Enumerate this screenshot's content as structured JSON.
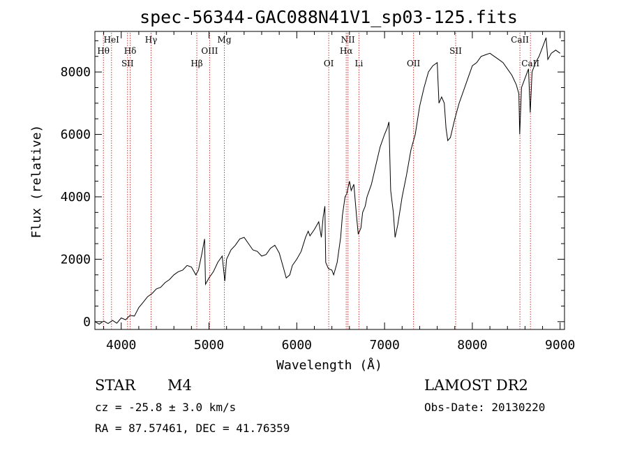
{
  "chart_data": {
    "type": "line",
    "title": "spec-56344-GAC088N41V1_sp03-125.fits",
    "xlabel": "Wavelength (Å)",
    "ylabel": "Flux (relative)",
    "xlim": [
      3700,
      9050
    ],
    "ylim": [
      -250,
      9300
    ],
    "x_ticks": [
      4000,
      5000,
      6000,
      7000,
      8000,
      9000
    ],
    "y_ticks": [
      0,
      2000,
      4000,
      6000,
      8000
    ],
    "grid": false,
    "series": [
      {
        "points": [
          [
            3700,
            0
          ],
          [
            3750,
            -80
          ],
          [
            3800,
            20
          ],
          [
            3850,
            -60
          ],
          [
            3900,
            40
          ],
          [
            3950,
            -50
          ],
          [
            4000,
            120
          ],
          [
            4050,
            60
          ],
          [
            4100,
            200
          ],
          [
            4150,
            180
          ],
          [
            4200,
            450
          ],
          [
            4250,
            620
          ],
          [
            4300,
            800
          ],
          [
            4350,
            900
          ],
          [
            4400,
            1050
          ],
          [
            4450,
            1100
          ],
          [
            4500,
            1250
          ],
          [
            4550,
            1350
          ],
          [
            4600,
            1500
          ],
          [
            4650,
            1600
          ],
          [
            4700,
            1650
          ],
          [
            4750,
            1800
          ],
          [
            4800,
            1750
          ],
          [
            4850,
            1500
          ],
          [
            4880,
            1650
          ],
          [
            4920,
            2200
          ],
          [
            4950,
            2650
          ],
          [
            4960,
            1200
          ],
          [
            5000,
            1400
          ],
          [
            5050,
            1600
          ],
          [
            5100,
            1900
          ],
          [
            5150,
            2100
          ],
          [
            5180,
            1300
          ],
          [
            5200,
            2000
          ],
          [
            5250,
            2300
          ],
          [
            5300,
            2450
          ],
          [
            5350,
            2650
          ],
          [
            5400,
            2700
          ],
          [
            5450,
            2500
          ],
          [
            5500,
            2300
          ],
          [
            5550,
            2250
          ],
          [
            5600,
            2100
          ],
          [
            5650,
            2150
          ],
          [
            5700,
            2350
          ],
          [
            5750,
            2450
          ],
          [
            5800,
            2200
          ],
          [
            5850,
            1700
          ],
          [
            5880,
            1400
          ],
          [
            5920,
            1500
          ],
          [
            5950,
            1800
          ],
          [
            6000,
            2000
          ],
          [
            6050,
            2250
          ],
          [
            6100,
            2700
          ],
          [
            6130,
            2900
          ],
          [
            6150,
            2750
          ],
          [
            6200,
            2950
          ],
          [
            6250,
            3200
          ],
          [
            6280,
            2700
          ],
          [
            6300,
            3350
          ],
          [
            6320,
            3700
          ],
          [
            6330,
            1900
          ],
          [
            6360,
            1700
          ],
          [
            6400,
            1650
          ],
          [
            6420,
            1500
          ],
          [
            6460,
            1900
          ],
          [
            6500,
            2700
          ],
          [
            6520,
            3400
          ],
          [
            6550,
            4000
          ],
          [
            6570,
            4100
          ],
          [
            6600,
            4500
          ],
          [
            6620,
            4200
          ],
          [
            6650,
            4400
          ],
          [
            6680,
            3400
          ],
          [
            6700,
            2800
          ],
          [
            6730,
            3000
          ],
          [
            6750,
            3500
          ],
          [
            6780,
            3700
          ],
          [
            6800,
            4000
          ],
          [
            6850,
            4400
          ],
          [
            6900,
            5000
          ],
          [
            6950,
            5600
          ],
          [
            7000,
            6000
          ],
          [
            7030,
            6200
          ],
          [
            7050,
            6400
          ],
          [
            7070,
            4200
          ],
          [
            7100,
            3500
          ],
          [
            7120,
            2700
          ],
          [
            7150,
            3100
          ],
          [
            7200,
            4000
          ],
          [
            7250,
            4700
          ],
          [
            7300,
            5500
          ],
          [
            7350,
            6000
          ],
          [
            7400,
            6900
          ],
          [
            7450,
            7500
          ],
          [
            7500,
            8000
          ],
          [
            7550,
            8200
          ],
          [
            7600,
            8300
          ],
          [
            7620,
            7000
          ],
          [
            7650,
            7200
          ],
          [
            7680,
            7000
          ],
          [
            7700,
            6200
          ],
          [
            7720,
            5800
          ],
          [
            7750,
            5900
          ],
          [
            7800,
            6500
          ],
          [
            7850,
            7000
          ],
          [
            7900,
            7400
          ],
          [
            7950,
            7800
          ],
          [
            8000,
            8200
          ],
          [
            8050,
            8300
          ],
          [
            8100,
            8500
          ],
          [
            8150,
            8550
          ],
          [
            8200,
            8600
          ],
          [
            8250,
            8500
          ],
          [
            8300,
            8400
          ],
          [
            8350,
            8300
          ],
          [
            8400,
            8100
          ],
          [
            8450,
            7900
          ],
          [
            8500,
            7600
          ],
          [
            8530,
            7300
          ],
          [
            8540,
            6000
          ],
          [
            8560,
            7500
          ],
          [
            8600,
            7800
          ],
          [
            8640,
            8100
          ],
          [
            8660,
            6700
          ],
          [
            8680,
            8000
          ],
          [
            8720,
            8300
          ],
          [
            8760,
            8500
          ],
          [
            8800,
            8800
          ],
          [
            8840,
            9100
          ],
          [
            8860,
            8400
          ],
          [
            8900,
            8600
          ],
          [
            8950,
            8700
          ],
          [
            9000,
            8600
          ]
        ]
      }
    ],
    "lines": [
      {
        "label": "Hθ",
        "wavelength": 3797,
        "row": 1
      },
      {
        "label": "HeI",
        "wavelength": 3889,
        "row": 0
      },
      {
        "label": "SII",
        "wavelength": 4072,
        "row": 2
      },
      {
        "label": "Hδ",
        "wavelength": 4102,
        "row": 1
      },
      {
        "label": "Hγ",
        "wavelength": 4340,
        "row": 0
      },
      {
        "label": "Hβ",
        "wavelength": 4861,
        "row": 2
      },
      {
        "label": "OIII",
        "wavelength": 5007,
        "row": 1
      },
      {
        "label": "Mg",
        "wavelength": 5175,
        "row": 0
      },
      {
        "label": "OI",
        "wavelength": 6364,
        "row": 2
      },
      {
        "label": "NII",
        "wavelength": 6583,
        "row": 0
      },
      {
        "label": "Hα",
        "wavelength": 6563,
        "row": 1
      },
      {
        "label": "Li",
        "wavelength": 6708,
        "row": 2
      },
      {
        "label": "OII",
        "wavelength": 7330,
        "row": 2
      },
      {
        "label": "SII",
        "wavelength": 7810,
        "row": 1
      },
      {
        "label": "CaII",
        "wavelength": 8542,
        "row": 0
      },
      {
        "label": "CaII",
        "wavelength": 8662,
        "row": 2
      }
    ]
  },
  "info": {
    "object_class": "STAR",
    "subclass": "M4",
    "redshift": "cz = -25.8 ± 3.0 km/s",
    "coords": "RA =  87.57461, DEC =  41.76359",
    "survey": "LAMOST DR2",
    "obs_date": "Obs-Date: 20130220"
  },
  "colors": {
    "spectrum": "#000000",
    "line_markers": "#cc3333",
    "axes": "#000000"
  }
}
